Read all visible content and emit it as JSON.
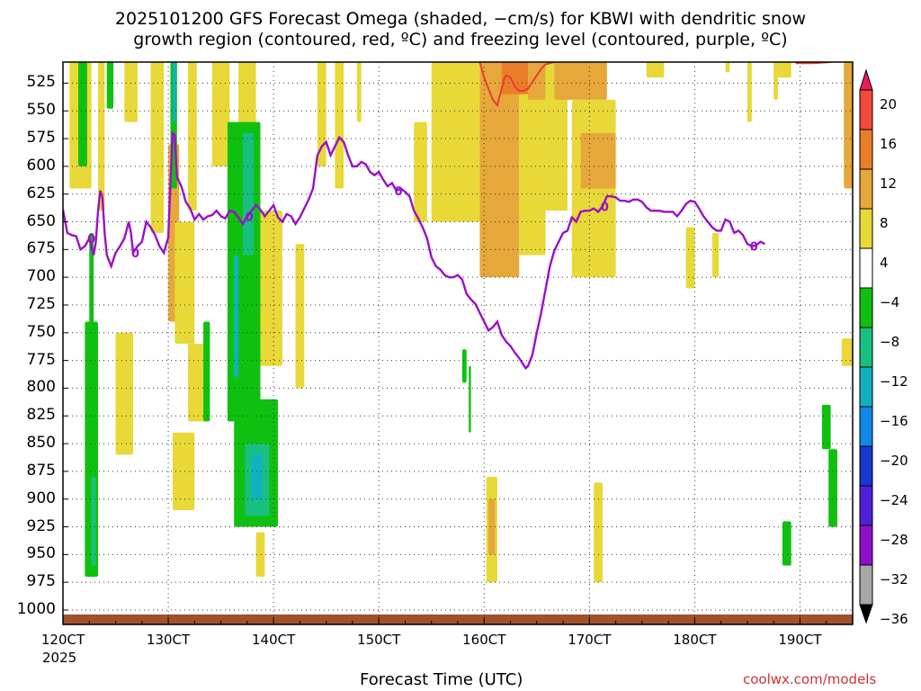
{
  "chart_data": {
    "type": "heatmap",
    "title_line1": "2025101200 GFS Forecast Omega (shaded, −cm/s) for KBWI with dendritic snow",
    "title_line2": "growth region (contoured, red, ºC) and freezing level (contoured, purple, ºC)",
    "xlabel": "Forecast Time (UTC)",
    "year_label": "2025",
    "credit": "coolwx.com/models",
    "x_ticks": [
      {
        "label": "120CT",
        "hour": 0
      },
      {
        "label": "130CT",
        "hour": 24
      },
      {
        "label": "140CT",
        "hour": 48
      },
      {
        "label": "150CT",
        "hour": 72
      },
      {
        "label": "160CT",
        "hour": 96
      },
      {
        "label": "170CT",
        "hour": 120
      },
      {
        "label": "180CT",
        "hour": 144
      },
      {
        "label": "190CT",
        "hour": 168
      }
    ],
    "x_range_hours": [
      0,
      180
    ],
    "y_ticks": [
      525,
      550,
      575,
      600,
      625,
      650,
      675,
      700,
      725,
      750,
      775,
      800,
      825,
      850,
      875,
      900,
      925,
      950,
      975,
      1000
    ],
    "y_range_hpa": [
      506,
      1013
    ],
    "colorbar": {
      "levels": [
        "20",
        "16",
        "12",
        "8",
        "4",
        "−4",
        "−8",
        "−12",
        "−16",
        "−20",
        "−24",
        "−28",
        "−32",
        "−36"
      ],
      "colors": [
        "#ee1a58",
        "#f04a3a",
        "#ea7e28",
        "#e6a83a",
        "#e8d838",
        "#ffffff",
        "#10c010",
        "#18c080",
        "#10b0c0",
        "#1088e8",
        "#1838d0",
        "#5020d8",
        "#9010c8",
        "#a8a8a8",
        "#000000"
      ]
    },
    "freezing_level": {
      "label": "0",
      "label_hours": [
        [
          6.5,
          0
        ],
        [
          16.5,
          0
        ],
        [
          42.5,
          0
        ],
        [
          76.5,
          0
        ],
        [
          123.5,
          0
        ],
        [
          157.5,
          0
        ]
      ],
      "points": [
        [
          0,
          639
        ],
        [
          1,
          660
        ],
        [
          2,
          662
        ],
        [
          3,
          663
        ],
        [
          4,
          675
        ],
        [
          5,
          672
        ],
        [
          6,
          665
        ],
        [
          7,
          680
        ],
        [
          7.5,
          668
        ],
        [
          8,
          640
        ],
        [
          8.5,
          622
        ],
        [
          9,
          628
        ],
        [
          9.5,
          660
        ],
        [
          10,
          680
        ],
        [
          11,
          690
        ],
        [
          12,
          678
        ],
        [
          13,
          672
        ],
        [
          14,
          665
        ],
        [
          15,
          650
        ],
        [
          15.5,
          660
        ],
        [
          16,
          678
        ],
        [
          17,
          672
        ],
        [
          18,
          668
        ],
        [
          19,
          650
        ],
        [
          20,
          655
        ],
        [
          21,
          662
        ],
        [
          22,
          672
        ],
        [
          23,
          678
        ],
        [
          24,
          664
        ],
        [
          24.5,
          615
        ],
        [
          25,
          570
        ],
        [
          25.5,
          572
        ],
        [
          26,
          610
        ],
        [
          27,
          618
        ],
        [
          28,
          632
        ],
        [
          29,
          638
        ],
        [
          30,
          648
        ],
        [
          31,
          643
        ],
        [
          32,
          648
        ],
        [
          33,
          645
        ],
        [
          34,
          644
        ],
        [
          35,
          640
        ],
        [
          36,
          645
        ],
        [
          37,
          647
        ],
        [
          38,
          640
        ],
        [
          39,
          641
        ],
        [
          40,
          646
        ],
        [
          41,
          652
        ],
        [
          42,
          645
        ],
        [
          43,
          640
        ],
        [
          44,
          635
        ],
        [
          45,
          639
        ],
        [
          46,
          645
        ],
        [
          47,
          640
        ],
        [
          48,
          635
        ],
        [
          49,
          646
        ],
        [
          50,
          650
        ],
        [
          51,
          643
        ],
        [
          52,
          645
        ],
        [
          53,
          652
        ],
        [
          54,
          646
        ],
        [
          55,
          638
        ],
        [
          56,
          630
        ],
        [
          57,
          620
        ],
        [
          58,
          590
        ],
        [
          59,
          582
        ],
        [
          60,
          578
        ],
        [
          61,
          590
        ],
        [
          62,
          582
        ],
        [
          63,
          574
        ],
        [
          64,
          578
        ],
        [
          65,
          590
        ],
        [
          66,
          600
        ],
        [
          67,
          600
        ],
        [
          68,
          596
        ],
        [
          69,
          598
        ],
        [
          70,
          605
        ],
        [
          71,
          608
        ],
        [
          72,
          605
        ],
        [
          73,
          612
        ],
        [
          74,
          618
        ],
        [
          75,
          615
        ],
        [
          76,
          622
        ],
        [
          77,
          620
        ],
        [
          78,
          623
        ],
        [
          79,
          627
        ],
        [
          80,
          640
        ],
        [
          81,
          647
        ],
        [
          82,
          655
        ],
        [
          83,
          665
        ],
        [
          84,
          682
        ],
        [
          85,
          690
        ],
        [
          86,
          693
        ],
        [
          87,
          698
        ],
        [
          88,
          700
        ],
        [
          89,
          700
        ],
        [
          90,
          698
        ],
        [
          91,
          702
        ],
        [
          92,
          715
        ],
        [
          93,
          720
        ],
        [
          94,
          724
        ],
        [
          95,
          732
        ],
        [
          96,
          740
        ],
        [
          97,
          748
        ],
        [
          98,
          745
        ],
        [
          99,
          740
        ],
        [
          100,
          752
        ],
        [
          101,
          758
        ],
        [
          102,
          762
        ],
        [
          103,
          768
        ],
        [
          104,
          773
        ],
        [
          105,
          779
        ],
        [
          105.5,
          782
        ],
        [
          106,
          780
        ],
        [
          107,
          770
        ],
        [
          108,
          750
        ],
        [
          109,
          732
        ],
        [
          110,
          711
        ],
        [
          111,
          690
        ],
        [
          112,
          676
        ],
        [
          113,
          668
        ],
        [
          114,
          660
        ],
        [
          115,
          658
        ],
        [
          116,
          646
        ],
        [
          117,
          650
        ],
        [
          118,
          641
        ],
        [
          119,
          640
        ],
        [
          120,
          640
        ],
        [
          121,
          638
        ],
        [
          122,
          641
        ],
        [
          123,
          636
        ],
        [
          124,
          627
        ],
        [
          125,
          627
        ],
        [
          126,
          628
        ],
        [
          127,
          631
        ],
        [
          128,
          631
        ],
        [
          129,
          632
        ],
        [
          130,
          630
        ],
        [
          131,
          630
        ],
        [
          132,
          632
        ],
        [
          133,
          637
        ],
        [
          134,
          640
        ],
        [
          135,
          640
        ],
        [
          136,
          640
        ],
        [
          137,
          641
        ],
        [
          138,
          641
        ],
        [
          139,
          641
        ],
        [
          140,
          645
        ],
        [
          141,
          640
        ],
        [
          142,
          634
        ],
        [
          143,
          631
        ],
        [
          144,
          632
        ],
        [
          145,
          638
        ],
        [
          146,
          645
        ],
        [
          147,
          650
        ],
        [
          148,
          655
        ],
        [
          149,
          658
        ],
        [
          150,
          658
        ],
        [
          151,
          648
        ],
        [
          152,
          650
        ],
        [
          153,
          660
        ],
        [
          154,
          658
        ],
        [
          155,
          662
        ],
        [
          156,
          670
        ],
        [
          157,
          672
        ],
        [
          158,
          671
        ],
        [
          159,
          668
        ],
        [
          160,
          670
        ]
      ]
    },
    "dgz_contour": {
      "points": [
        [
          95,
          506
        ],
        [
          96,
          520
        ],
        [
          97,
          530
        ],
        [
          98,
          540
        ],
        [
          99,
          545
        ],
        [
          100,
          530
        ],
        [
          100.5,
          522
        ],
        [
          101,
          518
        ],
        [
          102,
          520
        ],
        [
          103,
          528
        ],
        [
          104,
          532
        ],
        [
          105,
          532
        ],
        [
          106,
          530
        ],
        [
          107,
          524
        ],
        [
          108,
          518
        ],
        [
          109,
          512
        ],
        [
          110,
          508
        ],
        [
          112,
          506
        ]
      ],
      "points2": [
        [
          167,
          507
        ],
        [
          171,
          507
        ],
        [
          175,
          506
        ]
      ]
    },
    "shaded_regions": [
      {
        "value": 6,
        "start_hour": 1.5,
        "end_hour": 6.5,
        "top_hpa": 506,
        "bottom_hpa": 620
      },
      {
        "value": 6,
        "start_hour": 8,
        "end_hour": 9.5,
        "top_hpa": 506,
        "bottom_hpa": 640
      },
      {
        "value": 6,
        "start_hour": 14,
        "end_hour": 17,
        "top_hpa": 506,
        "bottom_hpa": 560
      },
      {
        "value": 6,
        "start_hour": 20,
        "end_hour": 23,
        "top_hpa": 506,
        "bottom_hpa": 660
      },
      {
        "value": 10,
        "start_hour": 24,
        "end_hour": 26.5,
        "top_hpa": 580,
        "bottom_hpa": 740
      },
      {
        "value": 6,
        "start_hour": 25.5,
        "end_hour": 30,
        "top_hpa": 650,
        "bottom_hpa": 760
      },
      {
        "value": 6,
        "start_hour": 28.5,
        "end_hour": 30.5,
        "top_hpa": 506,
        "bottom_hpa": 640
      },
      {
        "value": 6,
        "start_hour": 34,
        "end_hour": 38,
        "top_hpa": 506,
        "bottom_hpa": 600
      },
      {
        "value": 6,
        "start_hour": 40,
        "end_hour": 44,
        "top_hpa": 506,
        "bottom_hpa": 640
      },
      {
        "value": 6,
        "start_hour": 44,
        "end_hour": 50,
        "top_hpa": 640,
        "bottom_hpa": 780
      },
      {
        "value": 6,
        "start_hour": 53,
        "end_hour": 55,
        "top_hpa": 670,
        "bottom_hpa": 800
      },
      {
        "value": 6,
        "start_hour": 58,
        "end_hour": 60,
        "top_hpa": 506,
        "bottom_hpa": 600
      },
      {
        "value": 6,
        "start_hour": 62,
        "end_hour": 64,
        "top_hpa": 506,
        "bottom_hpa": 620
      },
      {
        "value": 6,
        "start_hour": 67,
        "end_hour": 68,
        "top_hpa": 506,
        "bottom_hpa": 560
      },
      {
        "value": 6,
        "start_hour": 80,
        "end_hour": 83,
        "top_hpa": 560,
        "bottom_hpa": 650
      },
      {
        "value": 6,
        "start_hour": 84,
        "end_hour": 95,
        "top_hpa": 506,
        "bottom_hpa": 650
      },
      {
        "value": 10,
        "start_hour": 95,
        "end_hour": 104,
        "top_hpa": 506,
        "bottom_hpa": 700
      },
      {
        "value": 6,
        "start_hour": 104,
        "end_hour": 110,
        "top_hpa": 506,
        "bottom_hpa": 680
      },
      {
        "value": 14,
        "start_hour": 100,
        "end_hour": 106,
        "top_hpa": 506,
        "bottom_hpa": 535
      },
      {
        "value": 10,
        "start_hour": 106,
        "end_hour": 110,
        "top_hpa": 506,
        "bottom_hpa": 540
      },
      {
        "value": 6,
        "start_hour": 110,
        "end_hour": 115,
        "top_hpa": 506,
        "bottom_hpa": 640
      },
      {
        "value": 10,
        "start_hour": 112,
        "end_hour": 124,
        "top_hpa": 506,
        "bottom_hpa": 540
      },
      {
        "value": 6,
        "start_hour": 116,
        "end_hour": 126,
        "top_hpa": 540,
        "bottom_hpa": 700
      },
      {
        "value": 10,
        "start_hour": 118,
        "end_hour": 126,
        "top_hpa": 570,
        "bottom_hpa": 620
      },
      {
        "value": 6,
        "start_hour": 133,
        "end_hour": 137,
        "top_hpa": 506,
        "bottom_hpa": 520
      },
      {
        "value": 6,
        "start_hour": 142,
        "end_hour": 144,
        "top_hpa": 655,
        "bottom_hpa": 710
      },
      {
        "value": 6,
        "start_hour": 151,
        "end_hour": 152,
        "top_hpa": 506,
        "bottom_hpa": 515
      },
      {
        "value": 6,
        "start_hour": 156,
        "end_hour": 157,
        "top_hpa": 506,
        "bottom_hpa": 560
      },
      {
        "value": 6,
        "start_hour": 163,
        "end_hour": 166,
        "top_hpa": 506,
        "bottom_hpa": 520
      },
      {
        "value": 10,
        "start_hour": 178,
        "end_hour": 180,
        "top_hpa": 506,
        "bottom_hpa": 620
      },
      {
        "value": 6,
        "start_hour": 177.5,
        "end_hour": 180,
        "top_hpa": 755,
        "bottom_hpa": 780
      },
      {
        "value": -6,
        "start_hour": 3.5,
        "end_hour": 5.5,
        "top_hpa": 506,
        "bottom_hpa": 600
      },
      {
        "value": -6,
        "start_hour": 6,
        "end_hour": 7,
        "top_hpa": 660,
        "bottom_hpa": 860
      },
      {
        "value": -6,
        "start_hour": 10,
        "end_hour": 11.5,
        "top_hpa": 506,
        "bottom_hpa": 548
      },
      {
        "value": -6,
        "start_hour": 5,
        "end_hour": 8,
        "top_hpa": 740,
        "bottom_hpa": 970
      },
      {
        "value": -10,
        "start_hour": 6.5,
        "end_hour": 7.5,
        "top_hpa": 880,
        "bottom_hpa": 960
      },
      {
        "value": 6,
        "start_hour": 12,
        "end_hour": 16,
        "top_hpa": 750,
        "bottom_hpa": 860
      },
      {
        "value": -6,
        "start_hour": 24.5,
        "end_hour": 26,
        "top_hpa": 506,
        "bottom_hpa": 620
      },
      {
        "value": -14,
        "start_hour": 25,
        "end_hour": 25.8,
        "top_hpa": 506,
        "bottom_hpa": 560
      },
      {
        "value": 6,
        "start_hour": 28.5,
        "end_hour": 33,
        "top_hpa": 760,
        "bottom_hpa": 830
      },
      {
        "value": 6,
        "start_hour": 25,
        "end_hour": 30,
        "top_hpa": 840,
        "bottom_hpa": 910
      },
      {
        "value": -6,
        "start_hour": 32,
        "end_hour": 33.5,
        "top_hpa": 740,
        "bottom_hpa": 830
      },
      {
        "value": -6,
        "start_hour": 37.5,
        "end_hour": 45,
        "top_hpa": 560,
        "bottom_hpa": 830
      },
      {
        "value": -14,
        "start_hour": 39,
        "end_hour": 40,
        "top_hpa": 680,
        "bottom_hpa": 790
      },
      {
        "value": -10,
        "start_hour": 41,
        "end_hour": 43.5,
        "top_hpa": 570,
        "bottom_hpa": 680
      },
      {
        "value": -6,
        "start_hour": 39,
        "end_hour": 49,
        "top_hpa": 810,
        "bottom_hpa": 925
      },
      {
        "value": -10,
        "start_hour": 41.5,
        "end_hour": 47,
        "top_hpa": 850,
        "bottom_hpa": 915
      },
      {
        "value": -14,
        "start_hour": 43,
        "end_hour": 45.5,
        "top_hpa": 860,
        "bottom_hpa": 900
      },
      {
        "value": 6,
        "start_hour": 44,
        "end_hour": 46,
        "top_hpa": 930,
        "bottom_hpa": 970
      },
      {
        "value": -6,
        "start_hour": 91,
        "end_hour": 92,
        "top_hpa": 765,
        "bottom_hpa": 795
      },
      {
        "value": -6,
        "start_hour": 92.5,
        "end_hour": 93,
        "top_hpa": 780,
        "bottom_hpa": 840
      },
      {
        "value": 6,
        "start_hour": 96.5,
        "end_hour": 99,
        "top_hpa": 880,
        "bottom_hpa": 975
      },
      {
        "value": 10,
        "start_hour": 97,
        "end_hour": 98.5,
        "top_hpa": 900,
        "bottom_hpa": 950
      },
      {
        "value": 6,
        "start_hour": 121,
        "end_hour": 123,
        "top_hpa": 885,
        "bottom_hpa": 975
      },
      {
        "value": -6,
        "start_hour": 173,
        "end_hour": 175,
        "top_hpa": 815,
        "bottom_hpa": 855
      },
      {
        "value": -6,
        "start_hour": 174.5,
        "end_hour": 176.5,
        "top_hpa": 855,
        "bottom_hpa": 925
      },
      {
        "value": -6,
        "start_hour": 164,
        "end_hour": 166,
        "top_hpa": 920,
        "bottom_hpa": 960
      },
      {
        "value": 6,
        "start_hour": 162,
        "end_hour": 163,
        "top_hpa": 506,
        "bottom_hpa": 540
      },
      {
        "value": 6,
        "start_hour": 148,
        "end_hour": 149.5,
        "top_hpa": 660,
        "bottom_hpa": 700
      }
    ],
    "terrain": {
      "color": "#a0522d",
      "surface_hpa": 1013
    }
  }
}
